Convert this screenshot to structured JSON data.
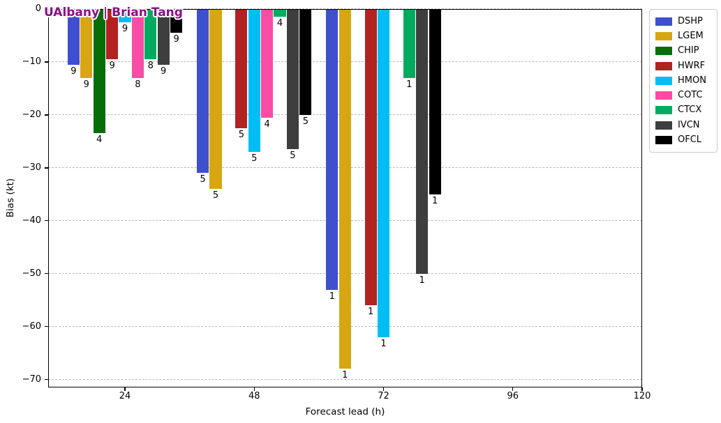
{
  "figure": {
    "watermark": "UAlbany | Brian Tang",
    "watermark_color": "#8a0f8a",
    "background_color": "#ffffff",
    "grid_color": "#b9b9b9",
    "axis_color": "#000000"
  },
  "chart_data": {
    "type": "bar",
    "title": "",
    "xlabel": "Forecast lead (h)",
    "ylabel": "Bias (kt)",
    "x_tick_values": [
      24,
      48,
      72,
      96,
      120
    ],
    "x_tick_labels": [
      "24",
      "48",
      "72",
      "96",
      "120"
    ],
    "y_tick_values": [
      0,
      -10,
      -20,
      -30,
      -40,
      -50,
      -60,
      -70
    ],
    "y_tick_labels": [
      "0",
      "−10",
      "−20",
      "−30",
      "−40",
      "−50",
      "−60",
      "−70"
    ],
    "xlim": [
      9.7,
      120
    ],
    "ylim": [
      -71.5,
      0
    ],
    "grid": {
      "horizontal": true,
      "style": "dashed"
    },
    "legend": {
      "position": "upper-right-outside"
    },
    "categories": [
      24,
      48,
      72
    ],
    "series": [
      {
        "name": "DSHP",
        "color": "#3e4fd0",
        "values": [
          -10.5,
          -31,
          -53
        ],
        "counts": [
          9,
          5,
          1
        ]
      },
      {
        "name": "LGEM",
        "color": "#d6a713",
        "values": [
          -13,
          -34,
          -68
        ],
        "counts": [
          9,
          5,
          1
        ]
      },
      {
        "name": "CHIP",
        "color": "#076e07",
        "values": [
          -23.5,
          null,
          null
        ],
        "counts": [
          4,
          null,
          null
        ]
      },
      {
        "name": "HWRF",
        "color": "#b22221",
        "values": [
          -9.5,
          -22.5,
          -56
        ],
        "counts": [
          9,
          5,
          1
        ]
      },
      {
        "name": "HMON",
        "color": "#00bef5",
        "values": [
          -2.5,
          -27,
          -62
        ],
        "counts": [
          9,
          5,
          1
        ]
      },
      {
        "name": "COTC",
        "color": "#f94ca4",
        "values": [
          -13,
          -20.5,
          null
        ],
        "counts": [
          8,
          4,
          null
        ]
      },
      {
        "name": "CTCX",
        "color": "#00ab5f",
        "values": [
          -9.5,
          -1.5,
          -13
        ],
        "counts": [
          8,
          4,
          1
        ]
      },
      {
        "name": "IVCN",
        "color": "#3e3e3e",
        "values": [
          -10.5,
          -26.5,
          -50
        ],
        "counts": [
          9,
          5,
          1
        ]
      },
      {
        "name": "OFCL",
        "color": "#000000",
        "values": [
          -4.5,
          -20,
          -35
        ],
        "counts": [
          9,
          5,
          1
        ]
      }
    ]
  }
}
